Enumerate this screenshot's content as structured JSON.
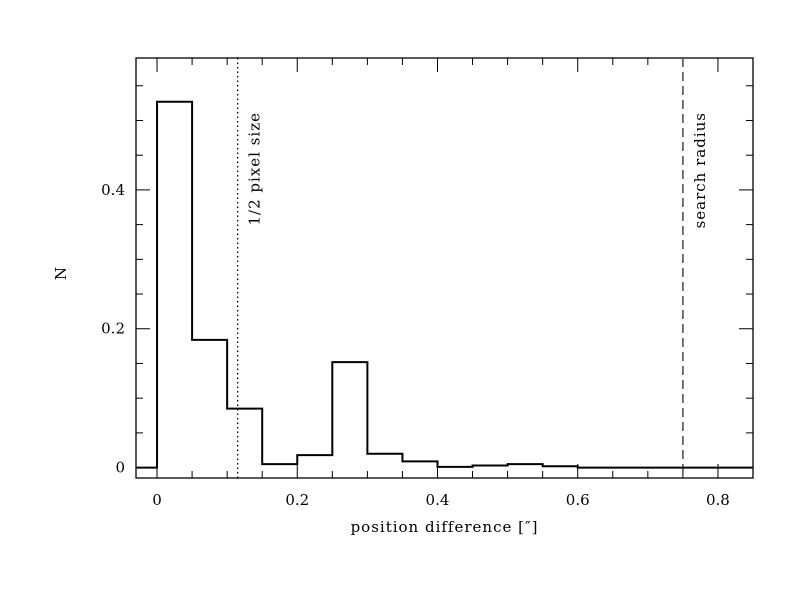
{
  "chart_data": {
    "type": "histogram",
    "title": "",
    "xlabel": "position difference [″]",
    "ylabel": "N",
    "xlim": [
      -0.03,
      0.85
    ],
    "ylim": [
      -0.015,
      0.59
    ],
    "x_ticks": [
      "0",
      "0.2",
      "0.4",
      "0.6",
      "0.8"
    ],
    "y_ticks": [
      "0",
      "0.2",
      "0.4"
    ],
    "bin_width": 0.05,
    "bins": [
      {
        "x_start": 0.0,
        "value": 0.527
      },
      {
        "x_start": 0.05,
        "value": 0.184
      },
      {
        "x_start": 0.1,
        "value": 0.085
      },
      {
        "x_start": 0.15,
        "value": 0.005
      },
      {
        "x_start": 0.2,
        "value": 0.018
      },
      {
        "x_start": 0.25,
        "value": 0.152
      },
      {
        "x_start": 0.3,
        "value": 0.02
      },
      {
        "x_start": 0.35,
        "value": 0.009
      },
      {
        "x_start": 0.4,
        "value": 0.001
      },
      {
        "x_start": 0.45,
        "value": 0.003
      },
      {
        "x_start": 0.5,
        "value": 0.005
      },
      {
        "x_start": 0.55,
        "value": 0.002
      },
      {
        "x_start": 0.6,
        "value": 0.0
      },
      {
        "x_start": 0.65,
        "value": 0.0
      },
      {
        "x_start": 0.7,
        "value": 0.0
      },
      {
        "x_start": 0.75,
        "value": 0.0
      },
      {
        "x_start": 0.8,
        "value": 0.0
      }
    ],
    "reference_lines": [
      {
        "x": 0.115,
        "style": "dotted",
        "label": "1/2 pixel size"
      },
      {
        "x": 0.75,
        "style": "dashed",
        "label": "search radius"
      }
    ],
    "line_color": "#000000",
    "dashed_color": "#555555"
  }
}
